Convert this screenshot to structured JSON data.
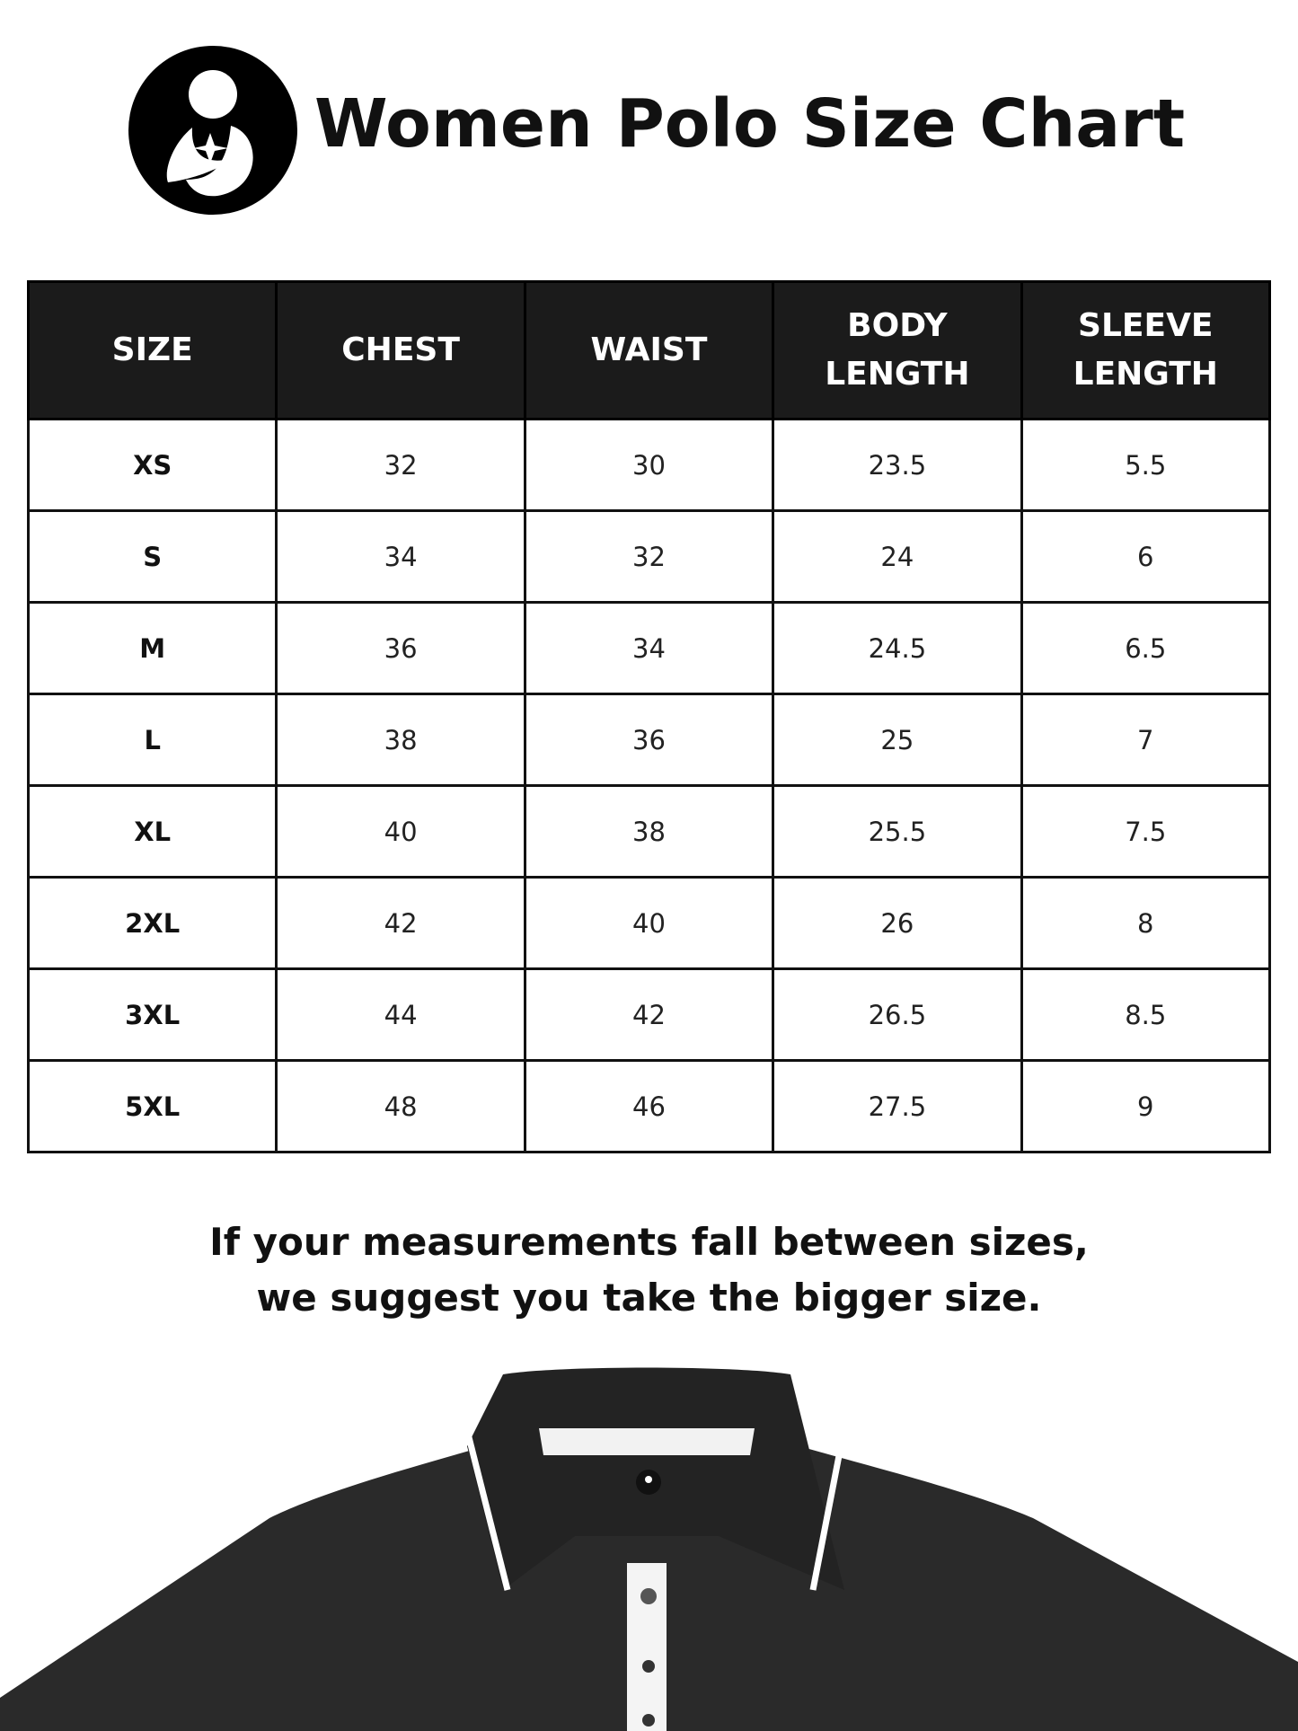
{
  "title": "Women Polo Size Chart",
  "table": {
    "headers": [
      [
        "SIZE"
      ],
      [
        "CHEST"
      ],
      [
        "WAIST"
      ],
      [
        "BODY",
        "LENGTH"
      ],
      [
        "SLEEVE",
        "LENGTH"
      ]
    ],
    "rows": [
      [
        "XS",
        "32",
        "30",
        "23.5",
        "5.5"
      ],
      [
        "S",
        "34",
        "32",
        "24",
        "6"
      ],
      [
        "M",
        "36",
        "34",
        "24.5",
        "6.5"
      ],
      [
        "L",
        "38",
        "36",
        "25",
        "7"
      ],
      [
        "XL",
        "40",
        "38",
        "25.5",
        "7.5"
      ],
      [
        "2XL",
        "42",
        "40",
        "26",
        "8"
      ],
      [
        "3XL",
        "44",
        "42",
        "26.5",
        "8.5"
      ],
      [
        "5XL",
        "48",
        "46",
        "27.5",
        "9"
      ]
    ]
  },
  "note": {
    "line1": "If your measurements fall between sizes,",
    "line2": "we suggest you take the bigger size."
  },
  "colors": {
    "header_bg": "#1b1b1b",
    "shirt": "#2a2a2a",
    "trim": "#ffffff"
  }
}
